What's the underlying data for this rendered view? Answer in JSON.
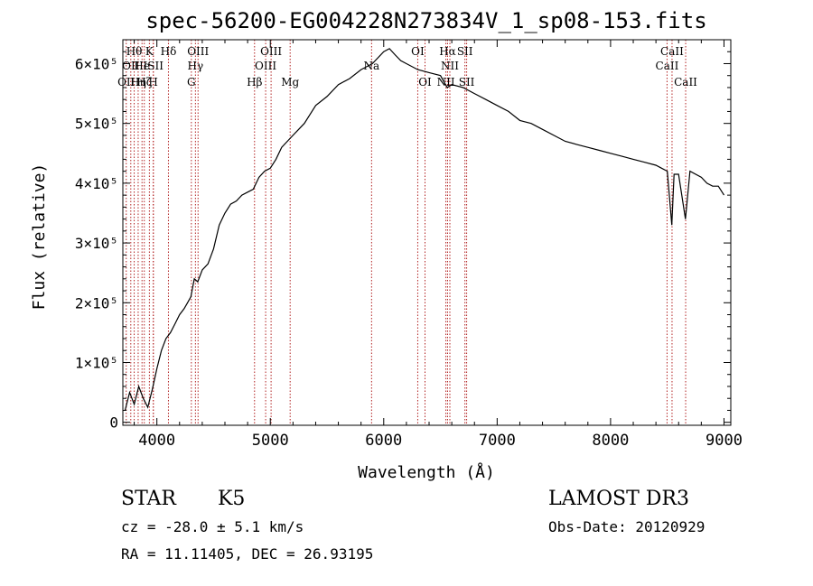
{
  "chart_data": {
    "type": "line",
    "title": "spec-56200-EG004228N273834V_1_sp08-153.fits",
    "xlabel": "Wavelength (Å)",
    "ylabel": "Flux (relative)",
    "xlim": [
      3700,
      9060
    ],
    "ylim": [
      -5000,
      640000
    ],
    "grid": false,
    "x_ticks": [
      4000,
      5000,
      6000,
      7000,
      8000,
      9000
    ],
    "y_ticks": [
      {
        "value": 0,
        "label": "0"
      },
      {
        "value": 100000,
        "label": "1×10⁵"
      },
      {
        "value": 200000,
        "label": "2×10⁵"
      },
      {
        "value": 300000,
        "label": "3×10⁵"
      },
      {
        "value": 400000,
        "label": "4×10⁵"
      },
      {
        "value": 500000,
        "label": "5×10⁵"
      },
      {
        "value": 600000,
        "label": "6×10⁵"
      }
    ],
    "series": [
      {
        "x": [
          3720,
          3760,
          3800,
          3840,
          3880,
          3920,
          3960,
          4000,
          4040,
          4080,
          4120,
          4160,
          4200,
          4240,
          4270,
          4300,
          4330,
          4360,
          4400,
          4450,
          4500,
          4550,
          4600,
          4650,
          4700,
          4750,
          4800,
          4850,
          4900,
          4950,
          5000,
          5050,
          5100,
          5150,
          5200,
          5250,
          5300,
          5400,
          5500,
          5600,
          5700,
          5800,
          5900,
          6000,
          6050,
          6100,
          6150,
          6200,
          6300,
          6400,
          6500,
          6560,
          6600,
          6700,
          6800,
          6900,
          7000,
          7100,
          7200,
          7300,
          7400,
          7500,
          7600,
          7700,
          7800,
          7900,
          8000,
          8100,
          8200,
          8300,
          8400,
          8450,
          8500,
          8540,
          8560,
          8600,
          8660,
          8700,
          8800,
          8850,
          8900,
          8950,
          9000
        ],
        "y": [
          20000,
          50000,
          30000,
          60000,
          40000,
          25000,
          55000,
          90000,
          120000,
          140000,
          150000,
          165000,
          180000,
          190000,
          200000,
          210000,
          240000,
          235000,
          255000,
          265000,
          290000,
          330000,
          350000,
          365000,
          370000,
          380000,
          385000,
          390000,
          410000,
          420000,
          425000,
          440000,
          460000,
          470000,
          480000,
          490000,
          500000,
          530000,
          545000,
          565000,
          575000,
          590000,
          600000,
          620000,
          625000,
          615000,
          605000,
          600000,
          590000,
          585000,
          580000,
          560000,
          565000,
          560000,
          550000,
          540000,
          530000,
          520000,
          505000,
          500000,
          490000,
          480000,
          470000,
          465000,
          460000,
          455000,
          450000,
          445000,
          440000,
          435000,
          430000,
          425000,
          420000,
          330000,
          415000,
          415000,
          340000,
          420000,
          410000,
          400000,
          395000,
          395000,
          380000
        ]
      }
    ],
    "lines": [
      {
        "x": 3730,
        "label": "OII",
        "row": 3
      },
      {
        "x": 3770,
        "label": "OII",
        "row": 2
      },
      {
        "x": 3800,
        "label": "Hθ",
        "row": 1
      },
      {
        "x": 3835,
        "label": "Hη",
        "row": 3
      },
      {
        "x": 3869,
        "label": "He",
        "row": 2
      },
      {
        "x": 3889,
        "label": "Hζ",
        "row": 3
      },
      {
        "x": 3934,
        "label": "K",
        "row": 1
      },
      {
        "x": 3968,
        "label": "H",
        "row": 3
      },
      {
        "x": 3969,
        "label": "ISII",
        "row": 2
      },
      {
        "x": 4102,
        "label": "Hδ",
        "row": 1
      },
      {
        "x": 4304,
        "label": "G",
        "row": 3
      },
      {
        "x": 4340,
        "label": "Hγ",
        "row": 2
      },
      {
        "x": 4363,
        "label": "OIII",
        "row": 1
      },
      {
        "x": 4861,
        "label": "Hβ",
        "row": 3
      },
      {
        "x": 4959,
        "label": "OIII",
        "row": 2
      },
      {
        "x": 5007,
        "label": "OIII",
        "row": 1
      },
      {
        "x": 5175,
        "label": "Mg",
        "row": 3
      },
      {
        "x": 5893,
        "label": "Na",
        "row": 2
      },
      {
        "x": 6300,
        "label": "OI",
        "row": 1
      },
      {
        "x": 6364,
        "label": "OI",
        "row": 3
      },
      {
        "x": 6548,
        "label": "NII",
        "row": 3
      },
      {
        "x": 6563,
        "label": "Hα",
        "row": 1
      },
      {
        "x": 6583,
        "label": "NII",
        "row": 2
      },
      {
        "x": 6716,
        "label": "SII",
        "row": 1
      },
      {
        "x": 6731,
        "label": "SII",
        "row": 3
      },
      {
        "x": 8498,
        "label": "CaII",
        "row": 2
      },
      {
        "x": 8542,
        "label": "CaII",
        "row": 1
      },
      {
        "x": 8662,
        "label": "CaII",
        "row": 3
      }
    ]
  },
  "info": {
    "class": "STAR",
    "subclass": "K5",
    "survey": "LAMOST DR3",
    "cz": "cz = -28.0 ± 5.1 km/s",
    "obs_date": "Obs-Date: 20120929",
    "coords": "RA =  11.11405, DEC =  26.93195"
  }
}
